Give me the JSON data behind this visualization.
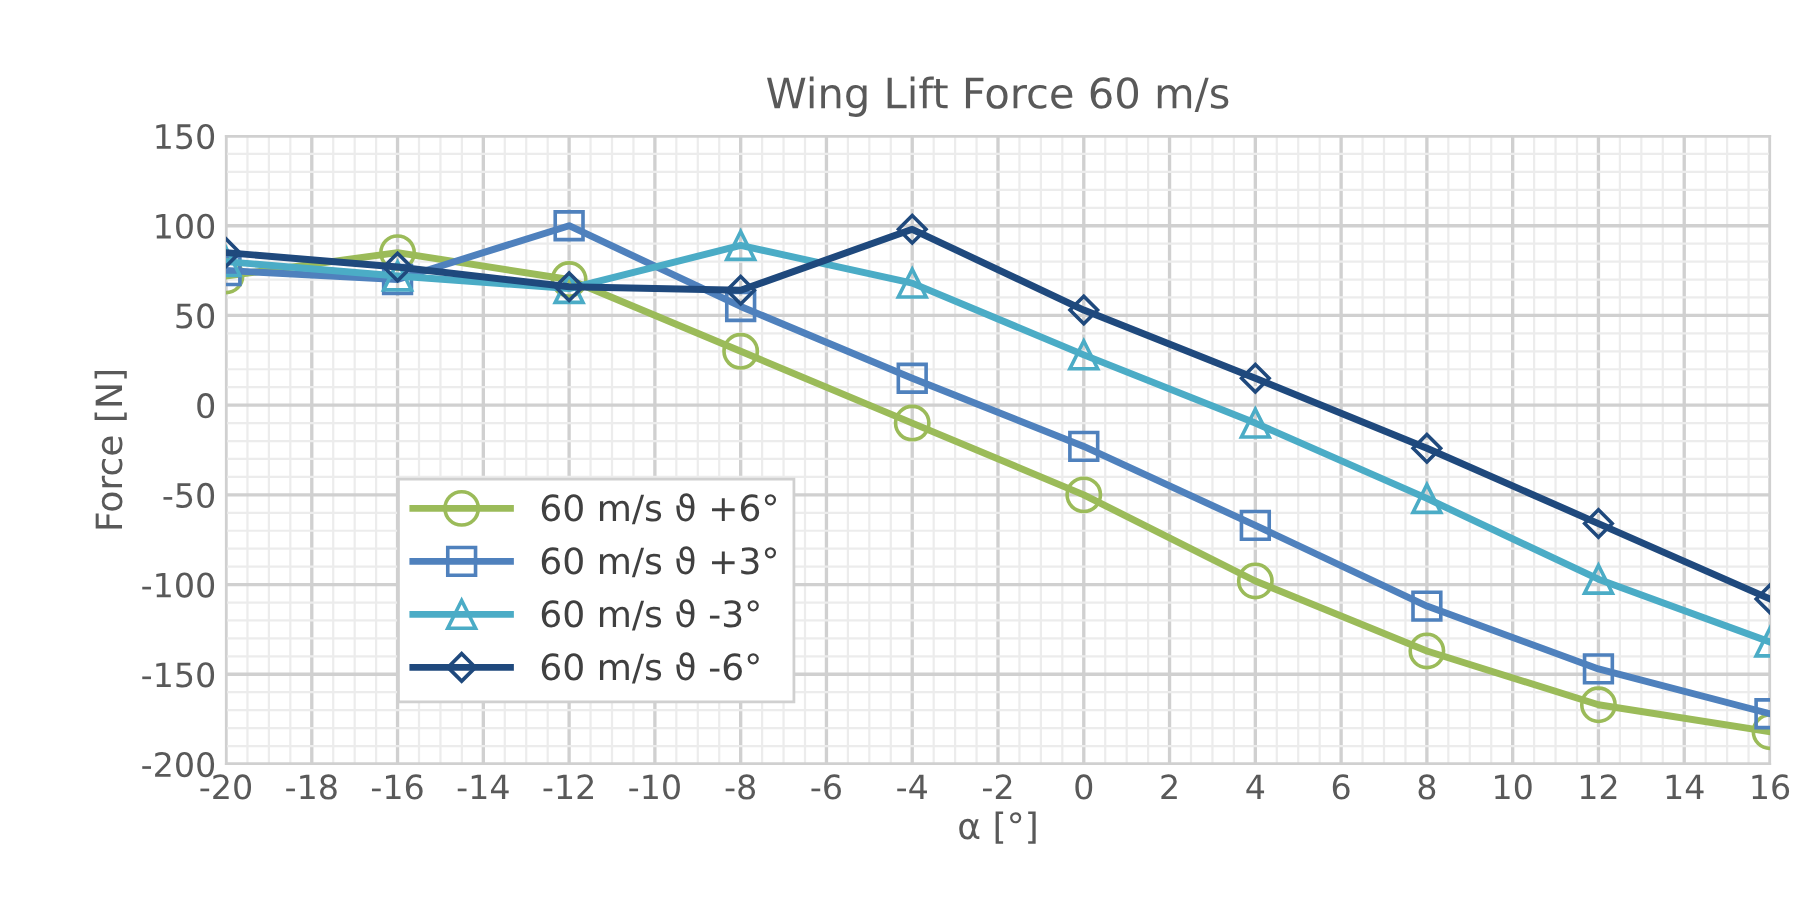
{
  "chart_data": {
    "type": "line",
    "title": "Wing Lift Force 60 m/s",
    "xlabel": "α [°]",
    "ylabel": "Force [N]",
    "x": [
      -20,
      -16,
      -12,
      -8,
      -4,
      0,
      4,
      8,
      12,
      16
    ],
    "series": [
      {
        "name": "60 m/s ϑ +6°",
        "color": "#9bbb59",
        "marker": "circle",
        "values": [
          72,
          85,
          70,
          30,
          -10,
          -50,
          -98,
          -137,
          -167,
          -182
        ]
      },
      {
        "name": "60 m/s ϑ +3°",
        "color": "#4f81bd",
        "marker": "square",
        "values": [
          75,
          70,
          100,
          55,
          15,
          -23,
          -67,
          -112,
          -147,
          -172
        ]
      },
      {
        "name": "60 m/s ϑ -3°",
        "color": "#4bacc6",
        "marker": "triangle",
        "values": [
          80,
          72,
          65,
          89,
          68,
          28,
          -10,
          -52,
          -97,
          -132
        ]
      },
      {
        "name": "60 m/s ϑ -6°",
        "color": "#1f497d",
        "marker": "diamond",
        "values": [
          85,
          77,
          66,
          64,
          98,
          53,
          15,
          -24,
          -66,
          -108
        ]
      }
    ],
    "xlim": [
      -20,
      16
    ],
    "xticks": [
      -20,
      -18,
      -16,
      -14,
      -12,
      -10,
      -8,
      -6,
      -4,
      -2,
      0,
      2,
      4,
      6,
      8,
      10,
      12,
      14,
      16
    ],
    "ylim": [
      -200,
      150
    ],
    "yticks": [
      -200,
      -150,
      -100,
      -50,
      0,
      50,
      100,
      150
    ],
    "grid": true,
    "legend": "bottom left",
    "line_style": "solid"
  }
}
